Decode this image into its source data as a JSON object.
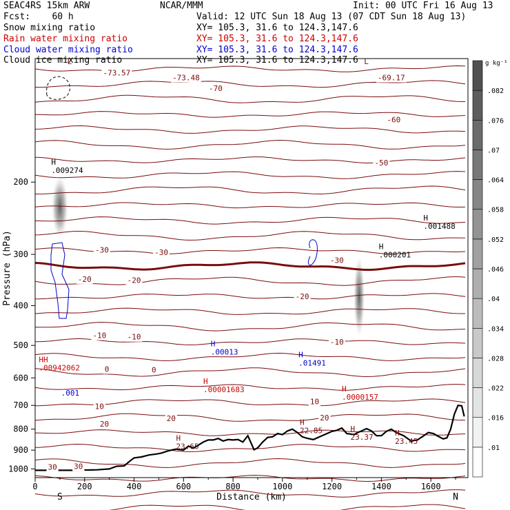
{
  "header": {
    "model": "SEAC4RS 15km ARW",
    "forecast": "Fcst:    60 h",
    "center": "NCAR/MMM",
    "init": "Init: 00 UTC Fri 16 Aug 13",
    "valid": "Valid: 12 UTC Sun 18 Aug 13 (07 CDT Sun 18 Aug 13)"
  },
  "fields": [
    {
      "label": "Snow mixing ratio",
      "xy": "XY= 105.3, 31.6 to 124.3,147.6",
      "color": "#000000"
    },
    {
      "label": "Rain water mixing ratio",
      "xy": "XY= 105.3, 31.6 to 124.3,147.6",
      "color": "#cc0000"
    },
    {
      "label": "Cloud water mixing ratio",
      "xy": "XY= 105.3, 31.6 to 124.3,147.6",
      "color": "#0000cc"
    },
    {
      "label": "Cloud ice mixing ratio",
      "xy": "XY= 105.3, 31.6 to 124.3,147.6",
      "color": "#000000"
    }
  ],
  "chart_data": {
    "type": "contour",
    "xlabel": "Distance (km)",
    "ylabel": "Pressure (hPa)",
    "xlim": [
      0,
      1750
    ],
    "ylim": [
      1050,
      100
    ],
    "x_ticks": [
      0,
      200,
      400,
      600,
      800,
      1000,
      1200,
      1400,
      1600
    ],
    "y_ticks": [
      200,
      300,
      400,
      500,
      600,
      700,
      800,
      900,
      1000
    ],
    "y_scale": "log-pressure",
    "endpoints": {
      "left": "S",
      "right": "N"
    },
    "colorbar": {
      "unit": "g kg⁻¹",
      "levels": [
        ".01",
        ".016",
        ".022",
        ".028",
        ".034",
        ".04",
        ".046",
        ".052",
        ".058",
        ".064",
        ".07",
        ".076",
        ".082"
      ]
    },
    "contour_color": "#7a0b0b",
    "contour_labels": [
      {
        "text": "-73.57",
        "x": 330,
        "p": 110
      },
      {
        "text": "-73.48",
        "x": 610,
        "p": 113
      },
      {
        "text": "-70",
        "x": 730,
        "p": 120
      },
      {
        "text": "-69.17",
        "x": 1440,
        "p": 113
      },
      {
        "text": "-60",
        "x": 1450,
        "p": 143
      },
      {
        "text": "-50",
        "x": 1400,
        "p": 182
      },
      {
        "text": "-30",
        "x": 270,
        "p": 297
      },
      {
        "text": "-30",
        "x": 510,
        "p": 301
      },
      {
        "text": "-30",
        "x": 1220,
        "p": 315
      },
      {
        "text": "-20",
        "x": 200,
        "p": 350
      },
      {
        "text": "-20",
        "x": 400,
        "p": 352
      },
      {
        "text": "-20",
        "x": 1080,
        "p": 386
      },
      {
        "text": "-10",
        "x": 260,
        "p": 480
      },
      {
        "text": "-10",
        "x": 400,
        "p": 484
      },
      {
        "text": "-10",
        "x": 1220,
        "p": 498
      },
      {
        "text": "0",
        "x": 290,
        "p": 580
      },
      {
        "text": "0",
        "x": 480,
        "p": 582
      },
      {
        "text": "10",
        "x": 260,
        "p": 715
      },
      {
        "text": "10",
        "x": 1130,
        "p": 695
      },
      {
        "text": "20",
        "x": 280,
        "p": 788
      },
      {
        "text": "20",
        "x": 550,
        "p": 765
      },
      {
        "text": "20",
        "x": 1170,
        "p": 762
      },
      {
        "text": "30",
        "x": 70,
        "p": 1005
      },
      {
        "text": "30",
        "x": 175,
        "p": 1000
      }
    ],
    "extrema": [
      {
        "mark": "H",
        "value": ".009274",
        "x": 65,
        "p": 190,
        "color": "#000000"
      },
      {
        "mark": "L",
        "value": "",
        "x": 130,
        "p": 108,
        "color": "#7a0b0b"
      },
      {
        "mark": "L",
        "value": "",
        "x": 1330,
        "p": 108,
        "color": "#7a0b0b"
      },
      {
        "mark": "H",
        "value": ".001488",
        "x": 1570,
        "p": 260,
        "color": "#000000"
      },
      {
        "mark": "H",
        "value": ".000201",
        "x": 1390,
        "p": 305,
        "color": "#000000"
      },
      {
        "mark": "H",
        "value": ".00013",
        "x": 710,
        "p": 526,
        "color": "#0000cc"
      },
      {
        "mark": "H",
        "value": ".01491",
        "x": 1065,
        "p": 560,
        "color": "#0000cc"
      },
      {
        "mark": "HH",
        "value": ".00942062",
        "x": 15,
        "p": 575,
        "color": "#cc0000"
      },
      {
        "mark": "",
        "value": ".001",
        "x": 105,
        "p": 663,
        "color": "#0000cc"
      },
      {
        "mark": "H",
        "value": ".00001683",
        "x": 680,
        "p": 650,
        "color": "#cc0000"
      },
      {
        "mark": "H",
        "value": ".0000157",
        "x": 1240,
        "p": 678,
        "color": "#cc0000"
      },
      {
        "mark": "H",
        "value": "22.85",
        "x": 1070,
        "p": 818,
        "color": "#7a0b0b"
      },
      {
        "mark": "H",
        "value": "23.37",
        "x": 1275,
        "p": 848,
        "color": "#7a0b0b"
      },
      {
        "mark": "H",
        "value": "23.65",
        "x": 570,
        "p": 895,
        "color": "#7a0b0b"
      },
      {
        "mark": "H",
        "value": "23.45",
        "x": 1455,
        "p": 868,
        "color": "#7a0b0b"
      }
    ],
    "terrain": [
      [
        0,
        1008
      ],
      [
        150,
        1008
      ],
      [
        250,
        1005
      ],
      [
        300,
        1000
      ],
      [
        330,
        985
      ],
      [
        360,
        983
      ],
      [
        380,
        960
      ],
      [
        400,
        940
      ],
      [
        430,
        935
      ],
      [
        460,
        925
      ],
      [
        490,
        920
      ],
      [
        510,
        915
      ],
      [
        540,
        903
      ],
      [
        570,
        895
      ],
      [
        600,
        900
      ],
      [
        620,
        880
      ],
      [
        640,
        890
      ],
      [
        660,
        875
      ],
      [
        680,
        860
      ],
      [
        700,
        850
      ],
      [
        720,
        850
      ],
      [
        740,
        843
      ],
      [
        760,
        855
      ],
      [
        780,
        848
      ],
      [
        800,
        850
      ],
      [
        820,
        848
      ],
      [
        840,
        860
      ],
      [
        860,
        830
      ],
      [
        875,
        870
      ],
      [
        885,
        898
      ],
      [
        900,
        888
      ],
      [
        920,
        860
      ],
      [
        940,
        838
      ],
      [
        960,
        835
      ],
      [
        980,
        820
      ],
      [
        1000,
        825
      ],
      [
        1020,
        808
      ],
      [
        1040,
        800
      ],
      [
        1060,
        815
      ],
      [
        1080,
        835
      ],
      [
        1100,
        842
      ],
      [
        1125,
        848
      ],
      [
        1150,
        835
      ],
      [
        1170,
        825
      ],
      [
        1200,
        810
      ],
      [
        1220,
        805
      ],
      [
        1240,
        795
      ],
      [
        1260,
        820
      ],
      [
        1290,
        825
      ],
      [
        1305,
        815
      ],
      [
        1320,
        808
      ],
      [
        1340,
        798
      ],
      [
        1360,
        808
      ],
      [
        1380,
        830
      ],
      [
        1400,
        830
      ],
      [
        1420,
        810
      ],
      [
        1440,
        800
      ],
      [
        1460,
        815
      ],
      [
        1490,
        830
      ],
      [
        1520,
        855
      ],
      [
        1545,
        850
      ],
      [
        1565,
        835
      ],
      [
        1590,
        815
      ],
      [
        1610,
        820
      ],
      [
        1630,
        833
      ],
      [
        1650,
        845
      ],
      [
        1665,
        840
      ],
      [
        1680,
        800
      ],
      [
        1695,
        735
      ],
      [
        1710,
        700
      ],
      [
        1725,
        702
      ],
      [
        1735,
        745
      ]
    ]
  }
}
